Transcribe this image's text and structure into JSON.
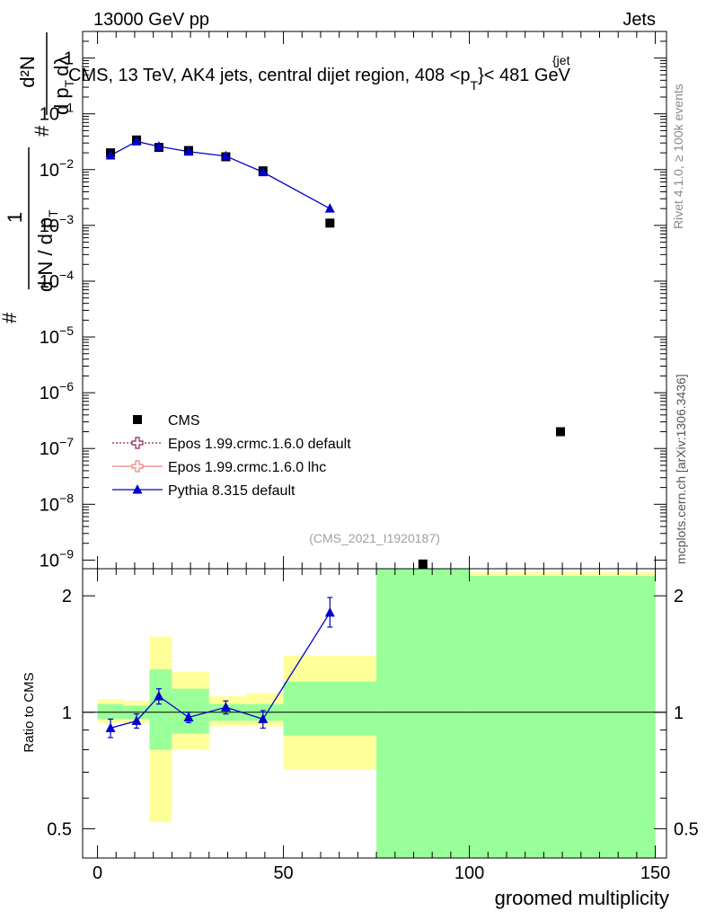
{
  "header": {
    "left": "13000 GeV pp",
    "right": "Jets"
  },
  "watermarks": {
    "rivet": "Rivet 4.1.0, ≥ 100k events",
    "mcplots": "mcplots.cern.ch [arXiv:1306.3436]"
  },
  "chart_data": [
    {
      "type": "scatter",
      "panel": "main",
      "title": "CMS, 13 TeV, AK4 jets, central dijet region, 408 <p",
      "title_sup": "{jet",
      "title_sub": "T",
      "title_end": "}< 481 GeV",
      "analysis_tag": "(CMS_2021_I1920187)",
      "ylabel": {
        "frac_top": "1",
        "frac_bottom": "d N / d p",
        "frac_bottom_sub": "T",
        "rhs_top": "d²N",
        "rhs_bottom": "d p",
        "rhs_bottom_sub": "T",
        "rhs_bottom_end": "dλ",
        "hash": "#"
      },
      "yscale": "log",
      "ylim": [
        7e-10,
        3
      ],
      "xlim": [
        -4,
        153
      ],
      "ytick_labels": [
        {
          "value": 1,
          "base": "1",
          "exp": ""
        },
        {
          "value": 0.1,
          "base": "10",
          "exp": "−1"
        },
        {
          "value": 0.01,
          "base": "10",
          "exp": "−2"
        },
        {
          "value": 0.001,
          "base": "10",
          "exp": "−3"
        },
        {
          "value": 0.0001,
          "base": "10",
          "exp": "−4"
        },
        {
          "value": 1e-05,
          "base": "10",
          "exp": "−5"
        },
        {
          "value": 1e-06,
          "base": "10",
          "exp": "−6"
        },
        {
          "value": 1e-07,
          "base": "10",
          "exp": "−7"
        },
        {
          "value": 1e-08,
          "base": "10",
          "exp": "−8"
        },
        {
          "value": 1e-09,
          "base": "10",
          "exp": "−9"
        }
      ],
      "series": [
        {
          "name": "CMS",
          "color": "#000000",
          "marker": "square",
          "x": [
            3.5,
            10.5,
            16.5,
            24.5,
            34.5,
            44.5,
            62.5,
            87.5,
            124.5
          ],
          "y": [
            0.02,
            0.034,
            0.025,
            0.022,
            0.017,
            0.0095,
            0.0011,
            8.5e-10,
            2e-07
          ]
        },
        {
          "name": "Pythia 8.315 default",
          "color": "#0000cc",
          "marker": "triangle",
          "x": [
            3.5,
            10.5,
            16.5,
            24.5,
            34.5,
            44.5,
            62.5
          ],
          "y": [
            0.018,
            0.032,
            0.026,
            0.021,
            0.0175,
            0.009,
            0.002
          ]
        }
      ],
      "legend": {
        "placement": "center-left",
        "entries": [
          {
            "label": "CMS",
            "style": "square",
            "color": "#000000"
          },
          {
            "label": "Epos 1.99.crmc.1.6.0 default",
            "style": "cross-dotted",
            "color": "#8b2252"
          },
          {
            "label": "Epos 1.99.crmc.1.6.0 lhc",
            "style": "cross-solid",
            "color": "#f08080"
          },
          {
            "label": "Pythia 8.315 default",
            "style": "triangle",
            "color": "#0000cc"
          }
        ]
      }
    },
    {
      "type": "line",
      "panel": "ratio",
      "xlabel": "groomed multiplicity",
      "ylabel": "Ratio to CMS",
      "yscale": "log",
      "ylim": [
        0.42,
        2.35
      ],
      "xlim": [
        -4,
        153
      ],
      "xticks": [
        0,
        50,
        100,
        150
      ],
      "yticks": [
        0.5,
        1,
        2
      ],
      "colors": {
        "inner_band": "#99ff99",
        "outer_band": "#ffff99",
        "reference_line": "#000000"
      },
      "bands": [
        {
          "x0": 0,
          "x1": 7,
          "outer": [
            0.94,
            1.08
          ],
          "inner": [
            0.96,
            1.05
          ]
        },
        {
          "x0": 7,
          "x1": 14,
          "outer": [
            0.94,
            1.07
          ],
          "inner": [
            0.96,
            1.04
          ]
        },
        {
          "x0": 14,
          "x1": 20,
          "outer": [
            0.52,
            1.57
          ],
          "inner": [
            0.8,
            1.29
          ]
        },
        {
          "x0": 20,
          "x1": 30,
          "outer": [
            0.8,
            1.27
          ],
          "inner": [
            0.88,
            1.15
          ]
        },
        {
          "x0": 30,
          "x1": 40,
          "outer": [
            0.92,
            1.1
          ],
          "inner": [
            0.95,
            1.05
          ]
        },
        {
          "x0": 40,
          "x1": 50,
          "outer": [
            0.92,
            1.12
          ],
          "inner": [
            0.95,
            1.05
          ]
        },
        {
          "x0": 50,
          "x1": 75,
          "outer": [
            0.71,
            1.4
          ],
          "inner": [
            0.87,
            1.2
          ]
        },
        {
          "x0": 75,
          "x1": 100,
          "outer": [
            0.3,
            3.0
          ],
          "inner": [
            0.3,
            3.0
          ]
        },
        {
          "x0": 100,
          "x1": 150,
          "outer": [
            0.3,
            2.3
          ],
          "inner": [
            0.3,
            2.25
          ]
        }
      ],
      "series": [
        {
          "name": "Pythia 8.315 default",
          "color": "#0000cc",
          "x": [
            3.5,
            10.5,
            16.5,
            24.5,
            34.5,
            44.5,
            62.5
          ],
          "y": [
            0.91,
            0.95,
            1.1,
            0.97,
            1.03,
            0.96,
            1.81
          ],
          "err_low": [
            0.05,
            0.04,
            0.05,
            0.03,
            0.04,
            0.05,
            0.15
          ],
          "err_high": [
            0.05,
            0.04,
            0.05,
            0.03,
            0.04,
            0.05,
            0.17
          ]
        }
      ]
    }
  ]
}
